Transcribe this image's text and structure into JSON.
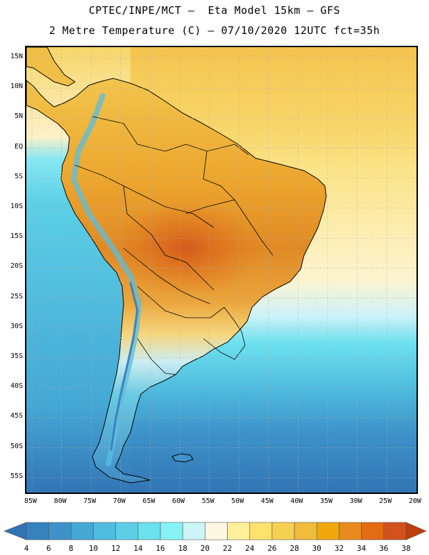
{
  "header": {
    "line1": "CPTEC/INPE/MCT –  Eta Model 15km – GFS",
    "line2": "2 Metre Temperature (C) – 07/10/2020 12UTC fct=35h"
  },
  "map": {
    "lat_labels": [
      "15N",
      "10N",
      "5N",
      "EQ",
      "5S",
      "10S",
      "15S",
      "20S",
      "25S",
      "30S",
      "35S",
      "40S",
      "45S",
      "50S",
      "55S"
    ],
    "lon_labels": [
      "85W",
      "80W",
      "75W",
      "70W",
      "65W",
      "60W",
      "55W",
      "50W",
      "45W",
      "40W",
      "35W",
      "30W",
      "25W",
      "20W"
    ],
    "ocean_color": "#5bd2e2",
    "land_color": "#f0b844",
    "border_color": "#000000",
    "grid_color": "#bbbbbb"
  },
  "legend": {
    "labels": [
      "4",
      "6",
      "8",
      "10",
      "12",
      "14",
      "16",
      "18",
      "20",
      "22",
      "24",
      "26",
      "28",
      "30",
      "32",
      "34",
      "36",
      "38"
    ],
    "colors": [
      "#3273b4",
      "#3582bf",
      "#3d93c9",
      "#45a7d4",
      "#4fbcdf",
      "#5ccfe6",
      "#6ce1ee",
      "#86f2f5",
      "#cdf5f8",
      "#fdf8e4",
      "#fef09a",
      "#fce36e",
      "#f6d04f",
      "#efbd3b",
      "#f0a80e",
      "#e88b1e",
      "#e16c12",
      "#d2521c",
      "#bd400e"
    ]
  }
}
